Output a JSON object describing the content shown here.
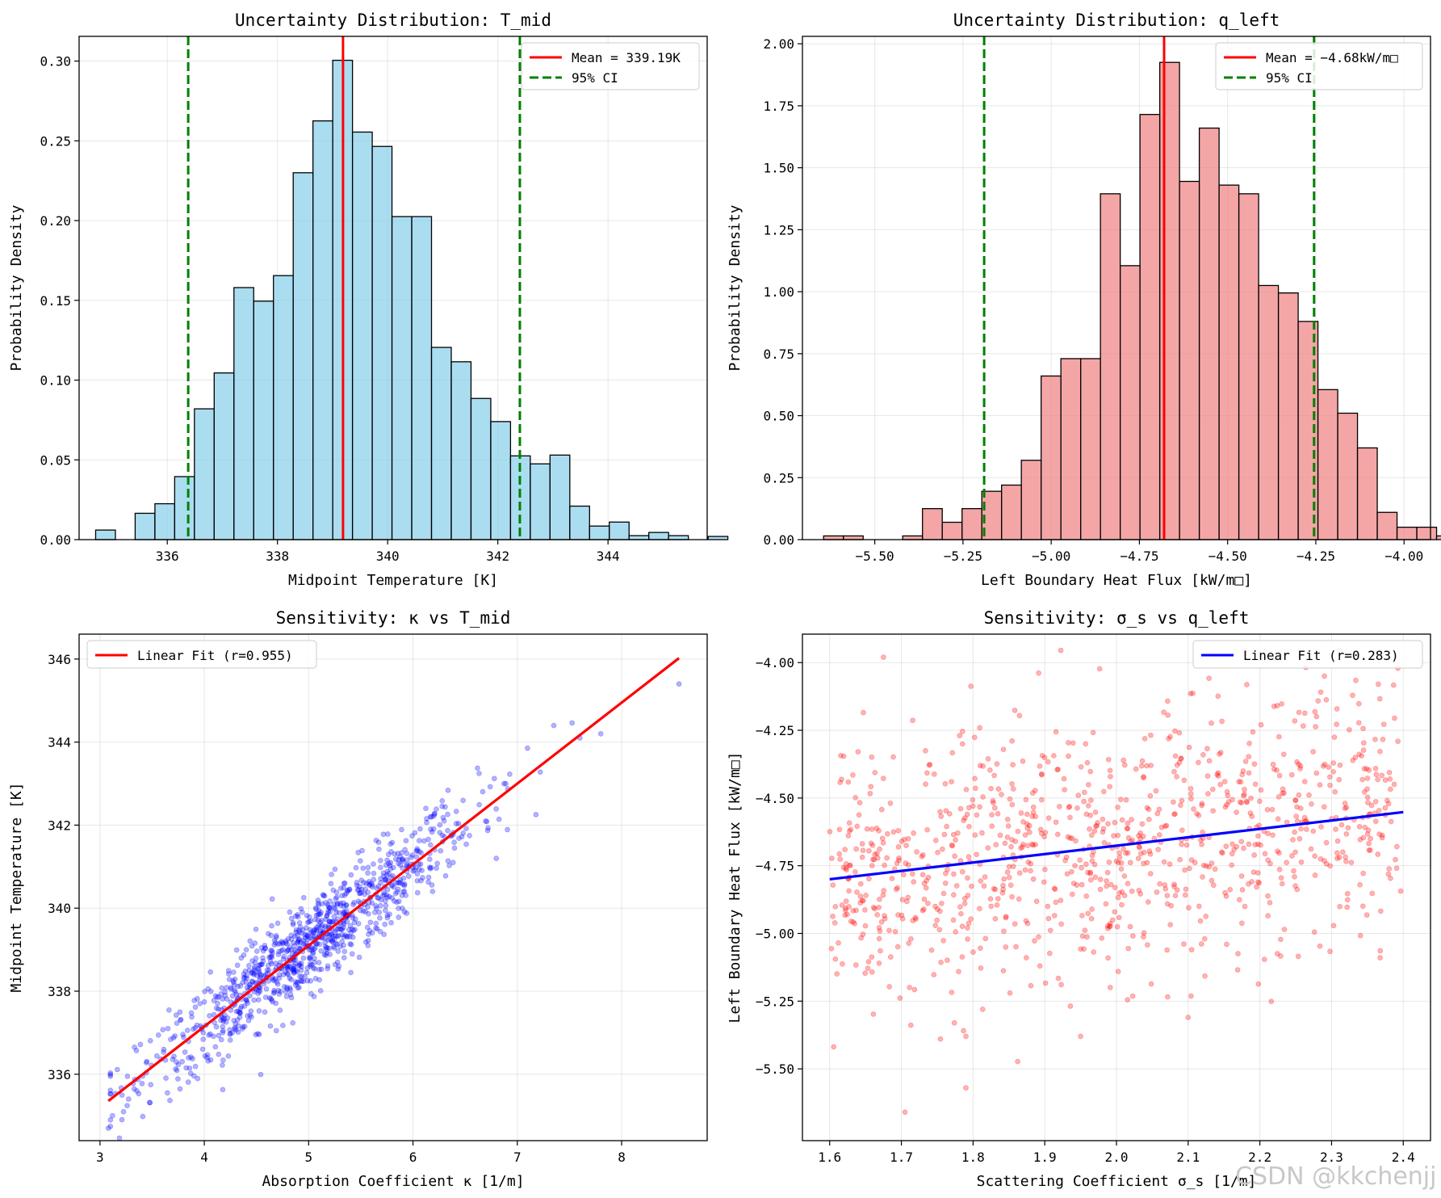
{
  "watermark": "CSDN @kkchenjj",
  "chart_data": [
    {
      "type": "bar",
      "title": "Uncertainty Distribution: T_mid",
      "xlabel": "Midpoint Temperature [K]",
      "ylabel": "Probability Density",
      "xlim": [
        334.4,
        345.8
      ],
      "ylim": [
        0,
        0.3155
      ],
      "xticks": [
        336,
        338,
        340,
        342,
        344
      ],
      "xtick_labels": [
        "336",
        "338",
        "340",
        "342",
        "344"
      ],
      "yticks": [
        0,
        0.05,
        0.1,
        0.15,
        0.2,
        0.25,
        0.3
      ],
      "ytick_labels": [
        "0.00",
        "0.05",
        "0.10",
        "0.15",
        "0.20",
        "0.25",
        "0.30"
      ],
      "bin_start": 334.7,
      "bin_width": 0.3586,
      "values": [
        0.006,
        0,
        0.0165,
        0.0225,
        0.0395,
        0.082,
        0.1045,
        0.158,
        0.1495,
        0.1655,
        0.23,
        0.2625,
        0.3005,
        0.2555,
        0.2465,
        0.2025,
        0.2025,
        0.1205,
        0.1115,
        0.0885,
        0.074,
        0.0525,
        0.0475,
        0.053,
        0.021,
        0.0085,
        0.011,
        0.0025,
        0.0045,
        0.0025,
        0,
        0.002
      ],
      "fill": "#87ceeb",
      "lines": [
        {
          "x": 339.19,
          "style": "solid",
          "color": "#ff0000"
        },
        {
          "x": 336.38,
          "style": "dashed",
          "color": "#008000"
        },
        {
          "x": 342.4,
          "style": "dashed",
          "color": "#008000"
        }
      ],
      "legend": [
        "Mean = 339.19K",
        "95% CI"
      ],
      "legend_position": "upper right",
      "grid": true
    },
    {
      "type": "bar",
      "title": "Uncertainty Distribution: q_left",
      "xlabel": "Left Boundary Heat Flux [kW/m□]",
      "ylabel": "Probability Density",
      "xlim": [
        -5.705,
        -3.925
      ],
      "ylim": [
        0,
        2.03
      ],
      "xticks": [
        -5.5,
        -5.25,
        -5.0,
        -4.75,
        -4.5,
        -4.25,
        -4.0
      ],
      "xtick_labels": [
        "−5.50",
        "−5.25",
        "−5.00",
        "−4.75",
        "−4.50",
        "−4.25",
        "−4.00"
      ],
      "yticks": [
        0,
        0.25,
        0.5,
        0.75,
        1.0,
        1.25,
        1.5,
        1.75,
        2.0
      ],
      "ytick_labels": [
        "0.00",
        "0.25",
        "0.50",
        "0.75",
        "1.00",
        "1.25",
        "1.50",
        "1.75",
        "2.00"
      ],
      "bin_start": -5.645,
      "bin_width": 0.05604,
      "values": [
        0.015,
        0.015,
        0,
        0,
        0.015,
        0.125,
        0.07,
        0.125,
        0.195,
        0.22,
        0.32,
        0.66,
        0.73,
        0.73,
        1.395,
        1.105,
        1.715,
        1.925,
        1.445,
        1.66,
        1.43,
        1.395,
        1.025,
        0.995,
        0.88,
        0.605,
        0.51,
        0.37,
        0.11,
        0.05,
        0.05,
        0.015
      ],
      "fill": "#f08080",
      "lines": [
        {
          "x": -4.68,
          "style": "solid",
          "color": "#ff0000"
        },
        {
          "x": -5.19,
          "style": "dashed",
          "color": "#008000"
        },
        {
          "x": -4.255,
          "style": "dashed",
          "color": "#008000"
        }
      ],
      "legend": [
        "Mean = −4.68kW/m□",
        "95% CI"
      ],
      "legend_position": "upper right",
      "grid": true
    },
    {
      "type": "scatter",
      "title": "Sensitivity: κ vs T_mid",
      "xlabel": "Absorption Coefficient κ [1/m]",
      "ylabel": "Midpoint Temperature [K]",
      "xlim": [
        2.8,
        8.82
      ],
      "ylim": [
        334.4,
        346.6
      ],
      "xticks": [
        3,
        4,
        5,
        6,
        7,
        8
      ],
      "xtick_labels": [
        "3",
        "4",
        "5",
        "6",
        "7",
        "8"
      ],
      "yticks": [
        336,
        338,
        340,
        342,
        344,
        346
      ],
      "ytick_labels": [
        "336",
        "338",
        "340",
        "342",
        "344",
        "346"
      ],
      "point_color": "#0000ff",
      "n_points": 1000,
      "x_mean": 5.0,
      "x_sd": 0.8,
      "x_min": 3.1,
      "x_max": 7.8,
      "fit": {
        "slope": 1.95,
        "intercept": 329.35,
        "x_range": [
          3.08,
          8.55
        ],
        "color": "#ff0000"
      },
      "resid_sd": 0.55,
      "extra_points": [
        [
          3.08,
          334.7
        ],
        [
          3.12,
          335.0
        ],
        [
          8.55,
          345.4
        ],
        [
          7.8,
          344.2
        ],
        [
          7.6,
          344.1
        ],
        [
          7.35,
          344.4
        ]
      ],
      "legend": [
        "Linear Fit (r=0.955)"
      ],
      "legend_position": "upper left",
      "grid": true
    },
    {
      "type": "scatter",
      "title": "Sensitivity: σ_s vs q_left",
      "xlabel": "Scattering Coefficient σ_s [1/m]",
      "ylabel": "Left Boundary Heat Flux [kW/m□]",
      "xlim": [
        1.562,
        2.438
      ],
      "ylim": [
        -5.765,
        -3.895
      ],
      "xticks": [
        1.6,
        1.7,
        1.8,
        1.9,
        2.0,
        2.1,
        2.2,
        2.3,
        2.4
      ],
      "xtick_labels": [
        "1.6",
        "1.7",
        "1.8",
        "1.9",
        "2.0",
        "2.1",
        "2.2",
        "2.3",
        "2.4"
      ],
      "yticks": [
        -5.5,
        -5.25,
        -5.0,
        -4.75,
        -4.5,
        -4.25,
        -4.0
      ],
      "ytick_labels": [
        "−5.50",
        "−5.25",
        "−5.00",
        "−4.75",
        "−4.50",
        "−4.25",
        "−4.00"
      ],
      "point_color": "#ff0000",
      "n_points": 1000,
      "x_min": 1.6,
      "x_max": 2.4,
      "fit": {
        "slope": 0.31,
        "intercept": -5.296,
        "x_range": [
          1.6,
          2.4
        ],
        "color": "#0000ff"
      },
      "resid_sd": 0.24,
      "extra_points": [
        [
          1.675,
          -3.98
        ],
        [
          1.705,
          -5.66
        ],
        [
          1.79,
          -5.57
        ],
        [
          1.79,
          -5.38
        ],
        [
          1.95,
          -5.38
        ],
        [
          2.29,
          -4.05
        ],
        [
          2.1,
          -5.31
        ]
      ],
      "legend": [
        "Linear Fit (r=0.283)"
      ],
      "legend_position": "upper right",
      "grid": true
    }
  ]
}
